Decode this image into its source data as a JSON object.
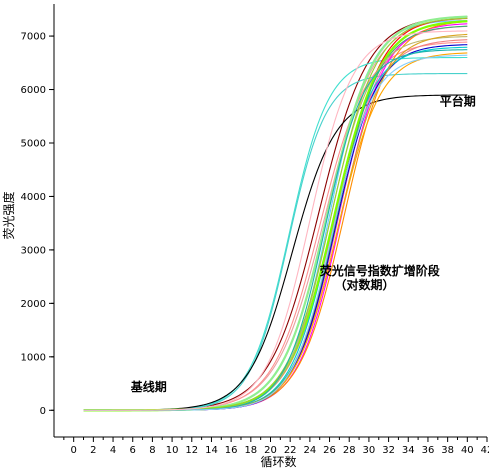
{
  "chart_data": {
    "type": "line",
    "title": "",
    "xlabel": "循环数",
    "ylabel": "荧光强度",
    "xlim": [
      -2,
      42
    ],
    "ylim": [
      -500,
      7600
    ],
    "x_ticks": [
      0,
      2,
      4,
      6,
      8,
      10,
      12,
      14,
      16,
      18,
      20,
      22,
      24,
      26,
      28,
      30,
      32,
      34,
      36,
      38,
      40,
      42
    ],
    "y_ticks": [
      0,
      1000,
      2000,
      3000,
      4000,
      5000,
      6000,
      7000
    ],
    "grid": false,
    "x_start": 1,
    "x_end": 40,
    "annotations": [
      {
        "text": "平台期",
        "x": 37.2,
        "y": 5700
      },
      {
        "text": "荧光信号指数扩增阶段",
        "x": 25.0,
        "y": 2530
      },
      {
        "text": "（对数期）",
        "x": 26.5,
        "y": 2270
      },
      {
        "text": "基线期",
        "x": 5.8,
        "y": 360
      }
    ],
    "series": [
      {
        "color": "#8b0000",
        "plateau": 7380,
        "midpoint": 24.9,
        "steepness": 0.4
      },
      {
        "color": "#e8a0a0",
        "plateau": 7350,
        "midpoint": 25.6,
        "steepness": 0.4
      },
      {
        "color": "#ff9090",
        "plateau": 6900,
        "midpoint": 25.0,
        "steepness": 0.42
      },
      {
        "color": "#f08080",
        "plateau": 6950,
        "midpoint": 26.4,
        "steepness": 0.44
      },
      {
        "color": "#66ccff",
        "plateau": 7300,
        "midpoint": 26.0,
        "steepness": 0.48
      },
      {
        "color": "#40e0d0",
        "plateau": 6600,
        "midpoint": 21.9,
        "steepness": 0.5
      },
      {
        "color": "#48d1cc",
        "plateau": 6300,
        "midpoint": 21.8,
        "steepness": 0.52
      },
      {
        "color": "#000000",
        "plateau": 5900,
        "midpoint": 22.2,
        "steepness": 0.45
      },
      {
        "color": "#ff0000",
        "plateau": 7350,
        "midpoint": 26.8,
        "steepness": 0.46
      },
      {
        "color": "#ff69b4",
        "plateau": 7200,
        "midpoint": 26.9,
        "steepness": 0.46
      },
      {
        "color": "#ff00ff",
        "plateau": 7250,
        "midpoint": 27.2,
        "steepness": 0.46
      },
      {
        "color": "#ff8c00",
        "plateau": 7300,
        "midpoint": 27.5,
        "steepness": 0.44
      },
      {
        "color": "#0000cd",
        "plateau": 6850,
        "midpoint": 26.6,
        "steepness": 0.48
      },
      {
        "color": "#00ced1",
        "plateau": 6800,
        "midpoint": 26.2,
        "steepness": 0.48
      },
      {
        "color": "#90ee90",
        "plateau": 7380,
        "midpoint": 25.8,
        "steepness": 0.43
      },
      {
        "color": "#7fff00",
        "plateau": 7300,
        "midpoint": 26.5,
        "steepness": 0.43
      },
      {
        "color": "#3cb371",
        "plateau": 7200,
        "midpoint": 26.7,
        "steepness": 0.46
      },
      {
        "color": "#bdb76b",
        "plateau": 7000,
        "midpoint": 26.0,
        "steepness": 0.47
      },
      {
        "color": "#daa520",
        "plateau": 7050,
        "midpoint": 27.0,
        "steepness": 0.45
      },
      {
        "color": "#9acd32",
        "plateau": 7350,
        "midpoint": 26.2,
        "steepness": 0.44
      },
      {
        "color": "#ffa500",
        "plateau": 6700,
        "midpoint": 26.8,
        "steepness": 0.46
      },
      {
        "color": "#20b2aa",
        "plateau": 6750,
        "midpoint": 25.5,
        "steepness": 0.5
      },
      {
        "color": "#87cefa",
        "plateau": 6650,
        "midpoint": 26.3,
        "steepness": 0.49
      },
      {
        "color": "#ffb6c1",
        "plateau": 7100,
        "midpoint": 24.0,
        "steepness": 0.46
      }
    ]
  }
}
